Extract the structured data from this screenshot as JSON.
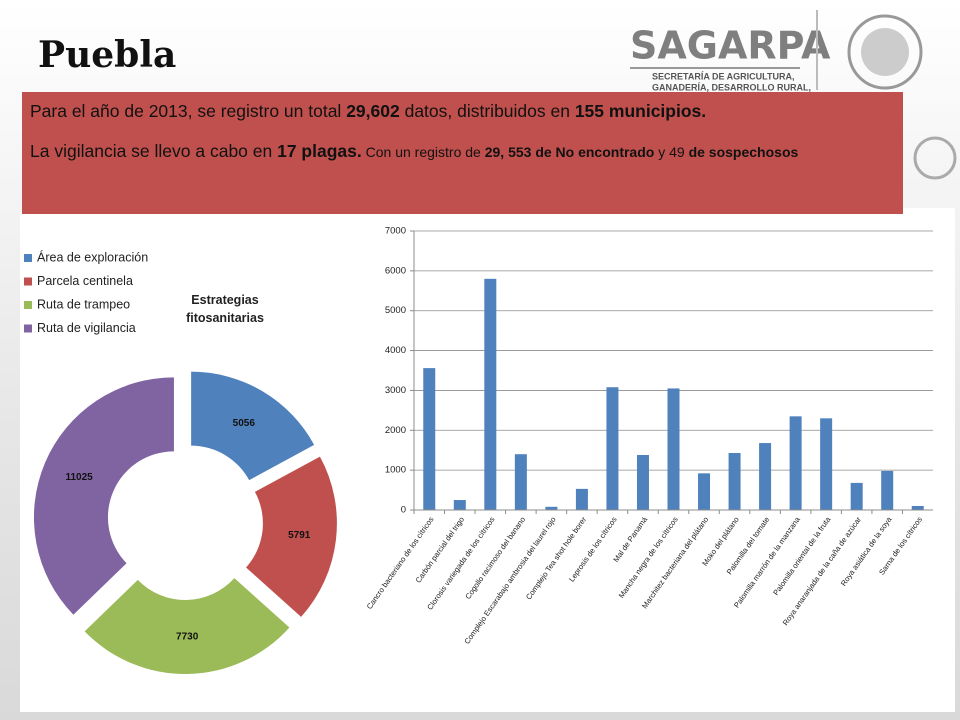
{
  "header": {
    "title": "Puebla",
    "logo": {
      "name": "SAGARPA",
      "lines": [
        "SECRETARÍA DE AGRICULTURA,",
        "GANADERÍA, DESARROLLO RURAL,"
      ]
    }
  },
  "info": {
    "paragraphs": [
      [
        {
          "text": "Para el año de 2013,  se registro un total ",
          "bold": false
        },
        {
          "text": "29,602",
          "bold": true
        },
        {
          "text": " datos, distribuidos en  ",
          "bold": false
        },
        {
          "text": "155 municipios.",
          "bold": true
        }
      ],
      [
        {
          "text": "La vigilancia se llevo a cabo en ",
          "bold": false
        },
        {
          "text": "17 plagas.",
          "bold": true
        },
        {
          "text": " Con un registro de ",
          "bold": false,
          "small": true
        },
        {
          "text": "29, 553 de No encontrado",
          "bold": true,
          "small": true
        },
        {
          "text": " y 49 ",
          "bold": false,
          "small": true
        },
        {
          "text": "de sospechosos",
          "bold": true,
          "small": true
        }
      ]
    ]
  },
  "chart_data": [
    {
      "type": "donut",
      "title": "Estrategias fitosanitarias",
      "categories": [
        "Área de  exploración",
        "Parcela centinela",
        "Ruta de trampeo",
        "Ruta de vigilancia"
      ],
      "values": [
        5056,
        5791,
        7730,
        11025
      ],
      "colors": [
        "#4f81bd",
        "#c0504d",
        "#9bbb59",
        "#8064a2"
      ],
      "legend": "top-left",
      "exploded": true
    },
    {
      "type": "bar",
      "categories": [
        "Cancro bacteriano de los cítricos",
        "Carbón parcial del trigo",
        "Clorosis variegada de los cítricos",
        "Cogollo racimoso del banano",
        "Complejo Escarabajo ambrosia del laurel rojo",
        "Complejo Tea shot hole borer",
        "Leprosis de los cítricos",
        "Mal de Panamá",
        "Mancha negra de los cítricos",
        "Marchitez bacteriana del plátano",
        "Moko del plátano",
        "Palomilla del tomate",
        "Palomilla marrón de la manzana",
        "Palomilla oriental de la fruta",
        "Roya anaranjada de la caña de azúcar",
        "Roya asiática de la soya",
        "Sarna de los cítricos"
      ],
      "values": [
        3560,
        250,
        5800,
        1400,
        80,
        530,
        3080,
        1380,
        3050,
        920,
        1430,
        1680,
        2350,
        2300,
        680,
        980,
        100
      ],
      "color": "#4f81bd",
      "ylim": [
        0,
        7000
      ],
      "yticks": [
        0,
        1000,
        2000,
        3000,
        4000,
        5000,
        6000,
        7000
      ],
      "grid": true
    }
  ]
}
